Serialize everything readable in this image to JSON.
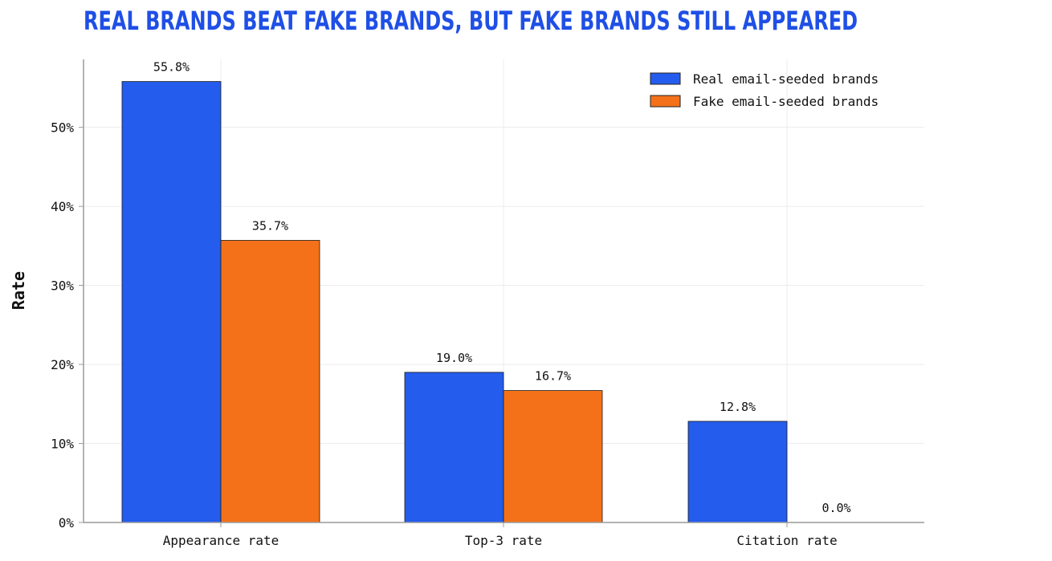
{
  "chart_data": {
    "type": "bar",
    "title": "REAL BRANDS BEAT FAKE BRANDS, BUT FAKE BRANDS STILL APPEARED",
    "ylabel": "Rate",
    "xlabel": "",
    "categories": [
      "Appearance rate",
      "Top-3 rate",
      "Citation rate"
    ],
    "series": [
      {
        "name": "Real email-seeded brands",
        "color": "#245ced",
        "values": [
          55.8,
          19.0,
          12.8
        ],
        "value_labels": [
          "55.8%",
          "19.0%",
          "12.8%"
        ]
      },
      {
        "name": "Fake email-seeded brands",
        "color": "#f47119",
        "values": [
          35.7,
          16.7,
          0.0
        ],
        "value_labels": [
          "35.7%",
          "16.7%",
          "0.0%"
        ]
      }
    ],
    "ylim": [
      0,
      58.6
    ],
    "yticks": [
      0,
      10,
      20,
      30,
      40,
      50
    ],
    "ytick_labels": [
      "0%",
      "10%",
      "20%",
      "30%",
      "40%",
      "50%"
    ],
    "grid": true,
    "legend_position": "top-right",
    "title_color": "#1f4fe6"
  }
}
